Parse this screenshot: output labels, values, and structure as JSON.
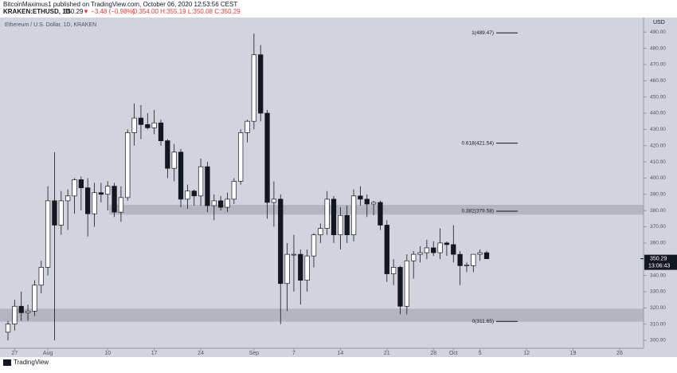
{
  "header": {
    "title": "BitcoinMaximus1 published on TradingView.com, October 06, 2020 12:53:56 CEST",
    "symbol": "KRAKEN:ETHUSD, 1D",
    "price": "350.29",
    "change": "▼ −3.48 (−0.98%)",
    "ohlc": "O:354.00 H:355.19 L:350.08 C:350.29"
  },
  "footer": {
    "brand": "TradingView"
  },
  "chart_data": {
    "type": "candlestick",
    "legend": "Ethereum / U.S. Dollar, 1D, KRAKEN",
    "y_unit": "USD",
    "x": [
      -1,
      0,
      1,
      2,
      3,
      4,
      5,
      6,
      7,
      8,
      9,
      10,
      11,
      12,
      13,
      14,
      15,
      16,
      17,
      18,
      19,
      20,
      21,
      22,
      23,
      24,
      25,
      26,
      27,
      28,
      29,
      30,
      31,
      32,
      33,
      34,
      35,
      36,
      37,
      38,
      39,
      40,
      41,
      42,
      43,
      44,
      45,
      46,
      47,
      48,
      49,
      50,
      51,
      52,
      53,
      54,
      55,
      56,
      57,
      58,
      59,
      60,
      61,
      62,
      63,
      64,
      65,
      66,
      67,
      68,
      69,
      70,
      71
    ],
    "open": [
      305,
      310,
      321,
      317,
      318,
      334,
      345,
      386,
      371,
      386,
      389,
      399,
      394,
      378,
      391,
      390,
      395,
      379,
      388,
      428,
      437,
      433,
      431,
      434,
      423,
      406,
      416,
      387,
      392,
      389,
      407,
      383,
      386,
      382,
      387,
      398,
      428,
      435,
      476,
      440,
      385,
      387,
      335,
      353,
      353,
      337,
      352,
      365,
      369,
      387,
      365,
      377,
      365,
      389,
      387,
      384,
      385,
      371,
      341,
      345,
      321,
      349,
      353,
      354,
      357,
      354,
      360,
      359,
      353,
      346,
      346,
      353,
      354
    ],
    "high": [
      312,
      325,
      330,
      322,
      337,
      349,
      395,
      416,
      392,
      393,
      400,
      401,
      400,
      397,
      397,
      398,
      397,
      395,
      430,
      446,
      445,
      440,
      442,
      436,
      424,
      421,
      418,
      396,
      393,
      412,
      410,
      390,
      389,
      391,
      400,
      430,
      436,
      489,
      482,
      442,
      398,
      390,
      360,
      365,
      356,
      356,
      366,
      372,
      392,
      389,
      382,
      383,
      393,
      395,
      390,
      386,
      386,
      374,
      350,
      346,
      353,
      355,
      358,
      362,
      361,
      369,
      361,
      371,
      355,
      348,
      352,
      356,
      355.19
    ],
    "low": [
      300,
      306,
      312,
      312,
      315,
      329,
      340,
      300,
      365,
      368,
      378,
      380,
      364,
      370,
      385,
      380,
      376,
      373,
      386,
      420,
      424,
      430,
      427,
      420,
      400,
      398,
      382,
      381,
      383,
      383,
      379,
      374,
      380,
      379,
      384,
      396,
      422,
      430,
      435,
      375,
      370,
      310,
      318,
      330,
      322,
      330,
      345,
      360,
      365,
      360,
      356,
      360,
      361,
      383,
      376,
      377,
      368,
      336,
      334,
      316,
      316,
      338,
      348,
      350,
      352,
      350,
      352,
      348,
      334,
      342,
      342,
      349,
      350.08
    ],
    "close": [
      310,
      321,
      317,
      318,
      334,
      345,
      386,
      371,
      386,
      389,
      399,
      394,
      378,
      391,
      390,
      395,
      379,
      388,
      428,
      437,
      433,
      431,
      434,
      423,
      406,
      416,
      387,
      392,
      389,
      407,
      383,
      386,
      382,
      387,
      398,
      428,
      435,
      476,
      440,
      385,
      387,
      335,
      353,
      353,
      337,
      352,
      365,
      369,
      387,
      365,
      377,
      365,
      389,
      387,
      384,
      385,
      371,
      341,
      345,
      321,
      349,
      353,
      354,
      357,
      354,
      360,
      359,
      353,
      346,
      346.5,
      353,
      354,
      350.29
    ],
    "up_color": "#ffffff",
    "down_color": "#131722",
    "xlim": [
      -2.2,
      94.6
    ],
    "xticks": [
      {
        "value": 0,
        "label": "27"
      },
      {
        "value": 5,
        "label": "Aug"
      },
      {
        "value": 14,
        "label": "10"
      },
      {
        "value": 21,
        "label": "17"
      },
      {
        "value": 28,
        "label": "24"
      },
      {
        "value": 36,
        "label": "Sep"
      },
      {
        "value": 42,
        "label": "7"
      },
      {
        "value": 49,
        "label": "14"
      },
      {
        "value": 56,
        "label": "21"
      },
      {
        "value": 63,
        "label": "28"
      },
      {
        "value": 66,
        "label": "Oct"
      },
      {
        "value": 70,
        "label": "5"
      },
      {
        "value": 77,
        "label": "12"
      },
      {
        "value": 84,
        "label": "19"
      },
      {
        "value": 91,
        "label": "26"
      }
    ],
    "ylim": [
      300,
      490
    ],
    "yticks": [
      {
        "value": 300,
        "label": "300.00"
      },
      {
        "value": 310,
        "label": "310.00"
      },
      {
        "value": 320,
        "label": "320.00"
      },
      {
        "value": 330,
        "label": "330.00"
      },
      {
        "value": 340,
        "label": "340.00"
      },
      {
        "value": 350,
        "label": "350.00"
      },
      {
        "value": 360,
        "label": "360.00"
      },
      {
        "value": 370,
        "label": "370.00"
      },
      {
        "value": 380,
        "label": "380.00"
      },
      {
        "value": 390,
        "label": "390.00"
      },
      {
        "value": 400,
        "label": "400.00"
      },
      {
        "value": 410,
        "label": "410.00"
      },
      {
        "value": 420,
        "label": "420.00"
      },
      {
        "value": 430,
        "label": "430.00"
      },
      {
        "value": 440,
        "label": "440.00"
      },
      {
        "value": 450,
        "label": "450.00"
      },
      {
        "value": 460,
        "label": "460.00"
      },
      {
        "value": 470,
        "label": "470.00"
      },
      {
        "value": 480,
        "label": "480.00"
      },
      {
        "value": 490,
        "label": "490.00"
      }
    ],
    "fib_levels": [
      {
        "label": "1(489.47)",
        "value": 489.47
      },
      {
        "label": "0.618(421.54)",
        "value": 421.54
      },
      {
        "label": "0.382(379.58)",
        "value": 379.58
      },
      {
        "label": "0(311.65)",
        "value": 311.65
      }
    ],
    "zones": [
      [
        377.5,
        383.5
      ],
      [
        311.5,
        319.5
      ]
    ],
    "last_price": {
      "value": 350.29,
      "label": "350.29",
      "countdown": "13:06:43"
    }
  }
}
